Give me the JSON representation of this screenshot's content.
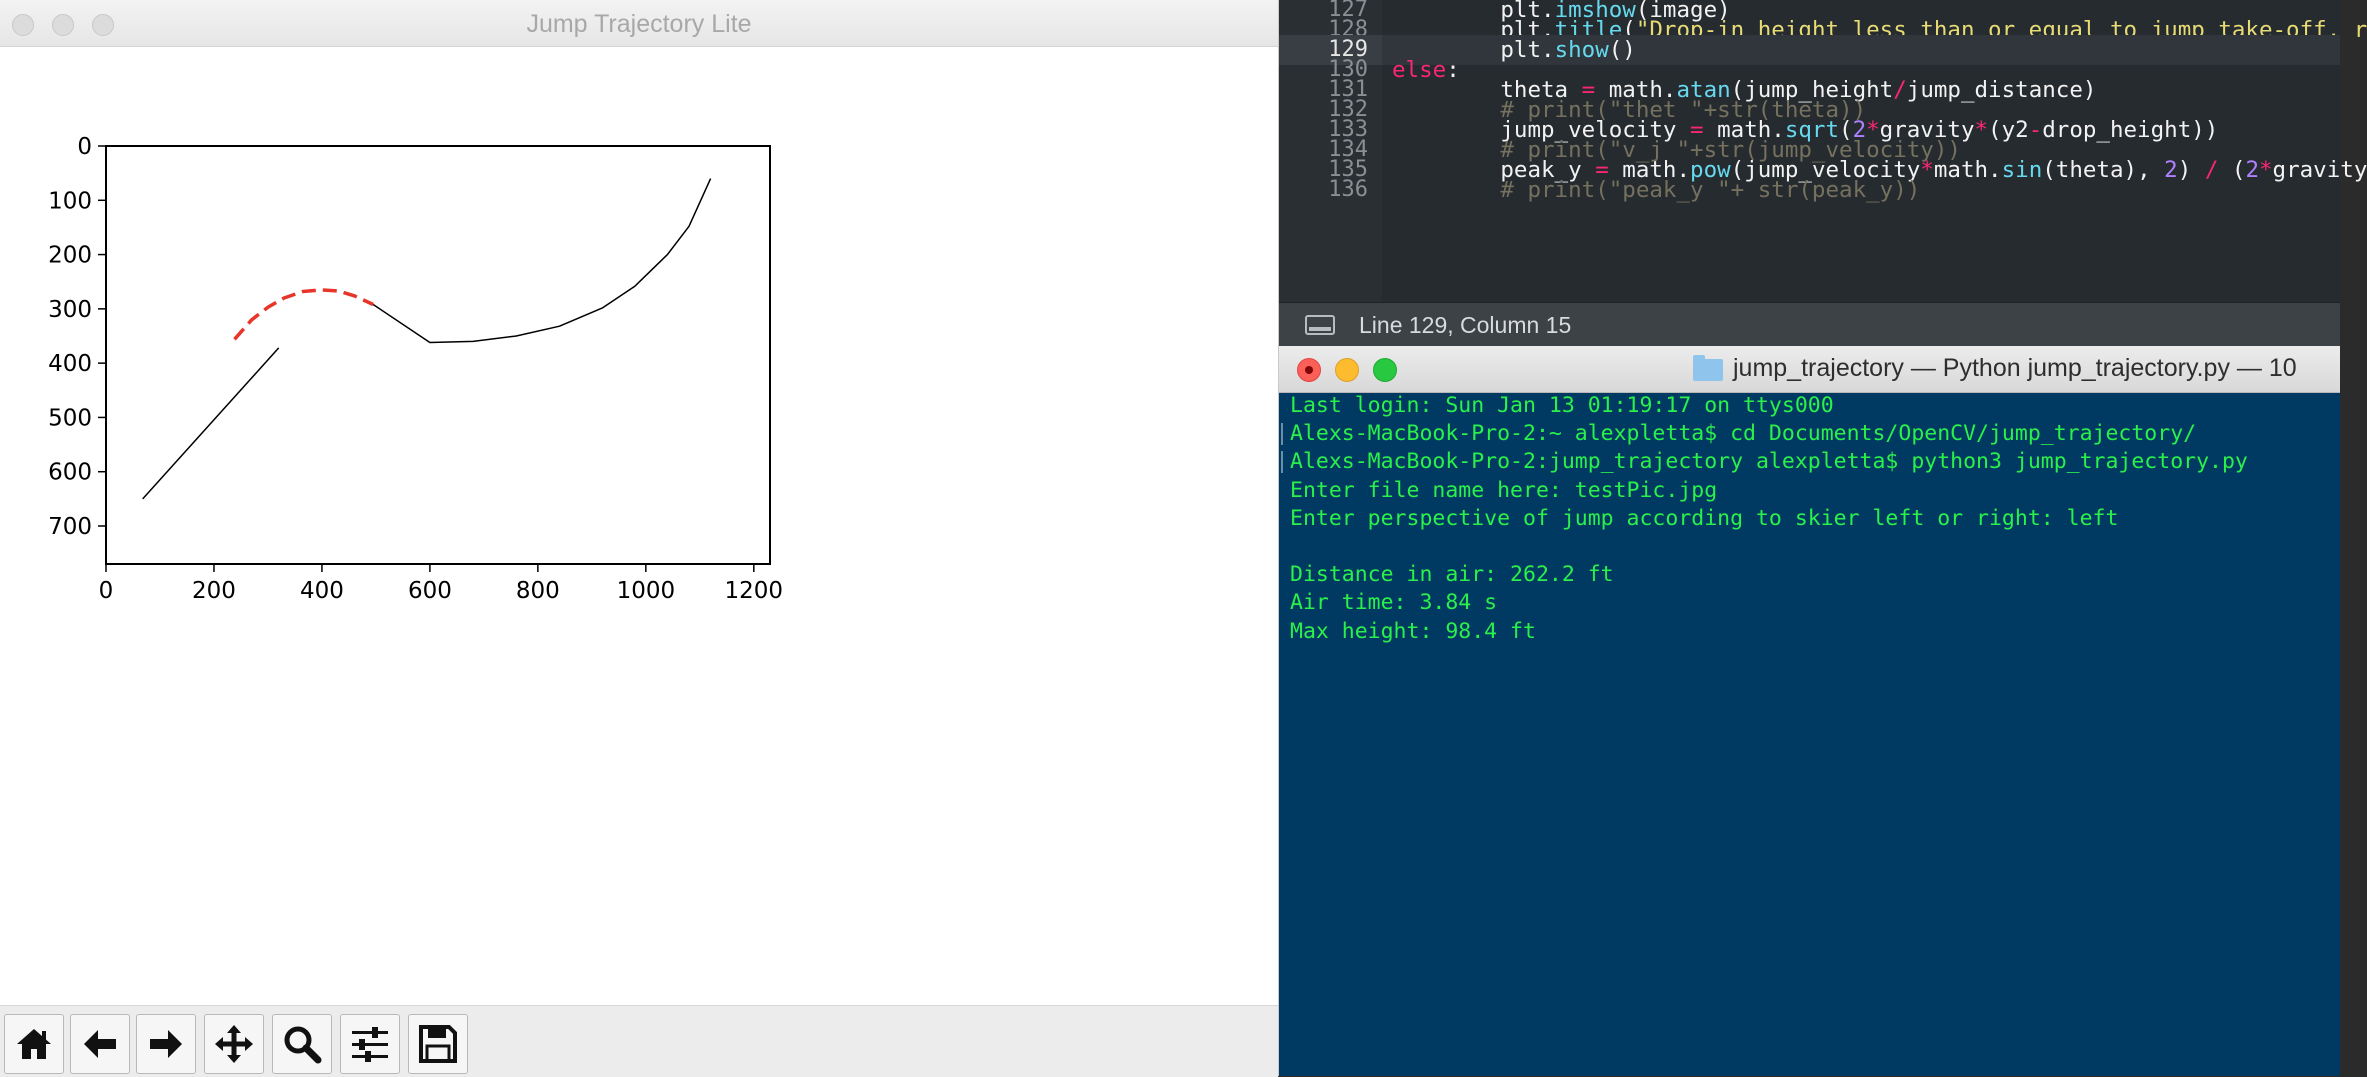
{
  "plot_window": {
    "title": "Jump Trajectory Lite",
    "toolbar": [
      {
        "icon": "home-icon"
      },
      {
        "icon": "back-arrow-icon"
      },
      {
        "icon": "forward-arrow-icon"
      },
      {
        "icon": "pan-icon"
      },
      {
        "icon": "zoom-icon"
      },
      {
        "icon": "configure-subplots-icon"
      },
      {
        "icon": "save-icon"
      }
    ]
  },
  "chart_data": {
    "type": "line",
    "title": "",
    "xlabel": "",
    "ylabel": "",
    "xlim": [
      0,
      1230
    ],
    "ylim": [
      770,
      0
    ],
    "y_inverted": true,
    "xticks": [
      "0",
      "200",
      "400",
      "600",
      "800",
      "1000",
      "1200"
    ],
    "yticks": [
      "0",
      "100",
      "200",
      "300",
      "400",
      "500",
      "600",
      "700"
    ],
    "grid": false,
    "series": [
      {
        "color": "#000000",
        "style": "solid",
        "points": [
          [
            68,
            650
          ],
          [
            320,
            372
          ]
        ]
      },
      {
        "color": "#e8352a",
        "style": "dashed",
        "points": [
          [
            238,
            356
          ],
          [
            270,
            320
          ],
          [
            300,
            297
          ],
          [
            330,
            280
          ],
          [
            365,
            268
          ],
          [
            400,
            265
          ],
          [
            430,
            267
          ],
          [
            460,
            276
          ],
          [
            495,
            292
          ]
        ]
      },
      {
        "color": "#000000",
        "style": "solid",
        "points": [
          [
            495,
            292
          ],
          [
            600,
            362
          ],
          [
            680,
            360
          ],
          [
            760,
            350
          ],
          [
            840,
            332
          ],
          [
            920,
            298
          ],
          [
            980,
            258
          ],
          [
            1040,
            200
          ],
          [
            1080,
            148
          ],
          [
            1120,
            60
          ]
        ]
      }
    ]
  },
  "editor": {
    "lines": [
      {
        "num": "127",
        "code": "        plt.imshow(image)"
      },
      {
        "num": "128",
        "code": "        plt.title(\"Drop-in height less than or equal to jump take-off, r"
      },
      {
        "num": "129",
        "code": "        plt.show()"
      },
      {
        "num": "130",
        "code": "else:"
      },
      {
        "num": "131",
        "code": "        theta = math.atan(jump_height/jump_distance)"
      },
      {
        "num": "132",
        "code": "        # print(\"thet \"+str(theta))"
      },
      {
        "num": "133",
        "code": "        jump_velocity = math.sqrt(2*gravity*(y2-drop_height))"
      },
      {
        "num": "134",
        "code": "        # print(\"v_j \"+str(jump_velocity))"
      },
      {
        "num": "135",
        "code": "        peak_y = math.pow(jump_velocity*math.sin(theta), 2) / (2*gravity"
      },
      {
        "num": "136",
        "code": "        # print(\"peak_y \"+ str(peak_y))"
      }
    ],
    "status": "Line 129, Column 15"
  },
  "terminal": {
    "title": "jump_trajectory — Python jump_trajectory.py — 10",
    "lines": [
      "Last login: Sun Jan 13 01:19:17 on ttys000",
      "Alexs-MacBook-Pro-2:~ alexpletta$ cd Documents/OpenCV/jump_trajectory/",
      "Alexs-MacBook-Pro-2:jump_trajectory alexpletta$ python3 jump_trajectory.py",
      "Enter file name here: testPic.jpg",
      "Enter perspective of jump according to skier left or right: left",
      "",
      "Distance in air: 262.2 ft",
      "Air time: 3.84 s",
      "Max height: 98.4 ft"
    ]
  }
}
